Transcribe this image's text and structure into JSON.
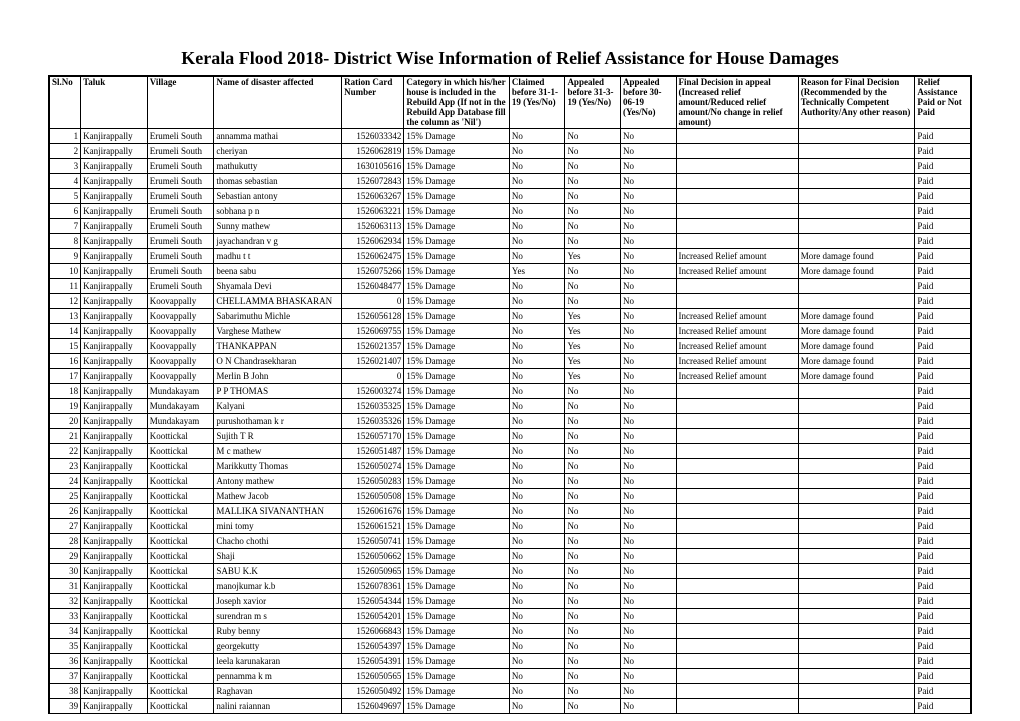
{
  "title": "Kerala Flood 2018- District Wise Information of Relief Assistance for House Damages",
  "columns": [
    "Sl.No",
    "Taluk",
    "Village",
    "Name of disaster affected",
    "Ration Card Number",
    "Category in which his/her house is included in the Rebuild App (If not in the Rebuild App Database fill the column as 'Nil')",
    "Claimed before 31-1-19 (Yes/No)",
    "Appealed before 31-3-19 (Yes/No)",
    "Appealed before 30-06-19 (Yes/No)",
    "Final Decision in appeal (Increased relief amount/Reduced relief amount/No change in relief amount)",
    "Reason for Final Decision (Recommended by the Technically Competent Authority/Any other reason)",
    "Relief Assistance Paid or Not Paid"
  ],
  "rows": [
    {
      "sl": 1,
      "taluk": "Kanjirappally",
      "village": "Erumeli South",
      "name": "annamma mathai",
      "ration": "1526033342",
      "cat": "15% Damage",
      "a1": "No",
      "a2": "No",
      "a3": "No",
      "final": "",
      "reason": "",
      "paid": "Paid"
    },
    {
      "sl": 2,
      "taluk": "Kanjirappally",
      "village": "Erumeli South",
      "name": "cheriyan",
      "ration": "1526062819",
      "cat": "15% Damage",
      "a1": "No",
      "a2": "No",
      "a3": "No",
      "final": "",
      "reason": "",
      "paid": "Paid"
    },
    {
      "sl": 3,
      "taluk": "Kanjirappally",
      "village": "Erumeli South",
      "name": "mathukutty",
      "ration": "1630105616",
      "cat": "15% Damage",
      "a1": "No",
      "a2": "No",
      "a3": "No",
      "final": "",
      "reason": "",
      "paid": "Paid"
    },
    {
      "sl": 4,
      "taluk": "Kanjirappally",
      "village": "Erumeli South",
      "name": "thomas sebastian",
      "ration": "1526072843",
      "cat": "15% Damage",
      "a1": "No",
      "a2": "No",
      "a3": "No",
      "final": "",
      "reason": "",
      "paid": "Paid"
    },
    {
      "sl": 5,
      "taluk": "Kanjirappally",
      "village": "Erumeli South",
      "name": "Sebastian antony",
      "ration": "1526063267",
      "cat": "15% Damage",
      "a1": "No",
      "a2": "No",
      "a3": "No",
      "final": "",
      "reason": "",
      "paid": "Paid"
    },
    {
      "sl": 6,
      "taluk": "Kanjirappally",
      "village": "Erumeli South",
      "name": "sobhana p n",
      "ration": "1526063221",
      "cat": "15% Damage",
      "a1": "No",
      "a2": "No",
      "a3": "No",
      "final": "",
      "reason": "",
      "paid": "Paid"
    },
    {
      "sl": 7,
      "taluk": "Kanjirappally",
      "village": "Erumeli South",
      "name": "Sunny mathew",
      "ration": "1526063113",
      "cat": "15% Damage",
      "a1": "No",
      "a2": "No",
      "a3": "No",
      "final": "",
      "reason": "",
      "paid": "Paid"
    },
    {
      "sl": 8,
      "taluk": "Kanjirappally",
      "village": "Erumeli South",
      "name": "jayachandran v g",
      "ration": "1526062934",
      "cat": "15% Damage",
      "a1": "No",
      "a2": "No",
      "a3": "No",
      "final": "",
      "reason": "",
      "paid": "Paid"
    },
    {
      "sl": 9,
      "taluk": "Kanjirappally",
      "village": "Erumeli South",
      "name": "madhu t t",
      "ration": "1526062475",
      "cat": "15% Damage",
      "a1": "No",
      "a2": "Yes",
      "a3": "No",
      "final": "Increased Relief amount",
      "reason": "More damage found",
      "paid": "Paid"
    },
    {
      "sl": 10,
      "taluk": "Kanjirappally",
      "village": "Erumeli South",
      "name": "beena sabu",
      "ration": "1526075266",
      "cat": "15% Damage",
      "a1": "Yes",
      "a2": "No",
      "a3": "No",
      "final": "Increased Relief amount",
      "reason": "More damage found",
      "paid": "Paid"
    },
    {
      "sl": 11,
      "taluk": "Kanjirappally",
      "village": "Erumeli South",
      "name": "Shyamala Devi",
      "ration": "1526048477",
      "cat": "15% Damage",
      "a1": "No",
      "a2": "No",
      "a3": "No",
      "final": "",
      "reason": "",
      "paid": "Paid"
    },
    {
      "sl": 12,
      "taluk": "Kanjirappally",
      "village": "Koovappally",
      "name": "CHELLAMMA BHASKARAN",
      "ration": "0",
      "cat": "15% Damage",
      "a1": "No",
      "a2": "No",
      "a3": "No",
      "final": "",
      "reason": "",
      "paid": "Paid"
    },
    {
      "sl": 13,
      "taluk": "Kanjirappally",
      "village": "Koovappally",
      "name": "Sabarimuthu Michle",
      "ration": "1526056128",
      "cat": "15% Damage",
      "a1": "No",
      "a2": "Yes",
      "a3": "No",
      "final": "Increased Relief amount",
      "reason": "More damage found",
      "paid": "Paid"
    },
    {
      "sl": 14,
      "taluk": "Kanjirappally",
      "village": "Koovappally",
      "name": "Varghese Mathew",
      "ration": "1526069755",
      "cat": "15% Damage",
      "a1": "No",
      "a2": "Yes",
      "a3": "No",
      "final": "Increased Relief amount",
      "reason": "More damage found",
      "paid": "Paid"
    },
    {
      "sl": 15,
      "taluk": "Kanjirappally",
      "village": "Koovappally",
      "name": "THANKAPPAN",
      "ration": "1526021357",
      "cat": "15% Damage",
      "a1": "No",
      "a2": "Yes",
      "a3": "No",
      "final": "Increased Relief amount",
      "reason": "More damage found",
      "paid": "Paid"
    },
    {
      "sl": 16,
      "taluk": "Kanjirappally",
      "village": "Koovappally",
      "name": "O N Chandrasekharan",
      "ration": "1526021407",
      "cat": "15% Damage",
      "a1": "No",
      "a2": "Yes",
      "a3": "No",
      "final": "Increased Relief amount",
      "reason": "More damage found",
      "paid": "Paid"
    },
    {
      "sl": 17,
      "taluk": "Kanjirappally",
      "village": "Koovappally",
      "name": "Merlin B John",
      "ration": "0",
      "cat": "15% Damage",
      "a1": "No",
      "a2": "Yes",
      "a3": "No",
      "final": "Increased Relief amount",
      "reason": "More damage found",
      "paid": "Paid"
    },
    {
      "sl": 18,
      "taluk": "Kanjirappally",
      "village": "Mundakayam",
      "name": "P P THOMAS",
      "ration": "1526003274",
      "cat": "15% Damage",
      "a1": "No",
      "a2": "No",
      "a3": "No",
      "final": "",
      "reason": "",
      "paid": "Paid"
    },
    {
      "sl": 19,
      "taluk": "Kanjirappally",
      "village": "Mundakayam",
      "name": "Kalyani",
      "ration": "1526035325",
      "cat": "15% Damage",
      "a1": "No",
      "a2": "No",
      "a3": "No",
      "final": "",
      "reason": "",
      "paid": "Paid"
    },
    {
      "sl": 20,
      "taluk": "Kanjirappally",
      "village": "Mundakayam",
      "name": "purushothaman k r",
      "ration": "1526035326",
      "cat": "15% Damage",
      "a1": "No",
      "a2": "No",
      "a3": "No",
      "final": "",
      "reason": "",
      "paid": "Paid"
    },
    {
      "sl": 21,
      "taluk": "Kanjirappally",
      "village": "Koottickal",
      "name": "Sujith T R",
      "ration": "1526057170",
      "cat": "15% Damage",
      "a1": "No",
      "a2": "No",
      "a3": "No",
      "final": "",
      "reason": "",
      "paid": "Paid"
    },
    {
      "sl": 22,
      "taluk": "Kanjirappally",
      "village": "Koottickal",
      "name": "M c mathew",
      "ration": "1526051487",
      "cat": "15% Damage",
      "a1": "No",
      "a2": "No",
      "a3": "No",
      "final": "",
      "reason": "",
      "paid": "Paid"
    },
    {
      "sl": 23,
      "taluk": "Kanjirappally",
      "village": "Koottickal",
      "name": "Marikkutty Thomas",
      "ration": "1526050274",
      "cat": "15% Damage",
      "a1": "No",
      "a2": "No",
      "a3": "No",
      "final": "",
      "reason": "",
      "paid": "Paid"
    },
    {
      "sl": 24,
      "taluk": "Kanjirappally",
      "village": "Koottickal",
      "name": "Antony mathew",
      "ration": "1526050283",
      "cat": "15% Damage",
      "a1": "No",
      "a2": "No",
      "a3": "No",
      "final": "",
      "reason": "",
      "paid": "Paid"
    },
    {
      "sl": 25,
      "taluk": "Kanjirappally",
      "village": "Koottickal",
      "name": "Mathew Jacob",
      "ration": "1526050508",
      "cat": "15% Damage",
      "a1": "No",
      "a2": "No",
      "a3": "No",
      "final": "",
      "reason": "",
      "paid": "Paid"
    },
    {
      "sl": 26,
      "taluk": "Kanjirappally",
      "village": "Koottickal",
      "name": "MALLIKA SIVANANTHAN",
      "ration": "1526061676",
      "cat": "15% Damage",
      "a1": "No",
      "a2": "No",
      "a3": "No",
      "final": "",
      "reason": "",
      "paid": "Paid"
    },
    {
      "sl": 27,
      "taluk": "Kanjirappally",
      "village": "Koottickal",
      "name": "mini tomy",
      "ration": "1526061521",
      "cat": "15% Damage",
      "a1": "No",
      "a2": "No",
      "a3": "No",
      "final": "",
      "reason": "",
      "paid": "Paid"
    },
    {
      "sl": 28,
      "taluk": "Kanjirappally",
      "village": "Koottickal",
      "name": "Chacho chothi",
      "ration": "1526050741",
      "cat": "15% Damage",
      "a1": "No",
      "a2": "No",
      "a3": "No",
      "final": "",
      "reason": "",
      "paid": "Paid"
    },
    {
      "sl": 29,
      "taluk": "Kanjirappally",
      "village": "Koottickal",
      "name": "Shaji",
      "ration": "1526050662",
      "cat": "15% Damage",
      "a1": "No",
      "a2": "No",
      "a3": "No",
      "final": "",
      "reason": "",
      "paid": "Paid"
    },
    {
      "sl": 30,
      "taluk": "Kanjirappally",
      "village": "Koottickal",
      "name": "SABU K.K",
      "ration": "1526050965",
      "cat": "15% Damage",
      "a1": "No",
      "a2": "No",
      "a3": "No",
      "final": "",
      "reason": "",
      "paid": "Paid"
    },
    {
      "sl": 31,
      "taluk": "Kanjirappally",
      "village": "Koottickal",
      "name": "manojkumar k.b",
      "ration": "1526078361",
      "cat": "15% Damage",
      "a1": "No",
      "a2": "No",
      "a3": "No",
      "final": "",
      "reason": "",
      "paid": "Paid"
    },
    {
      "sl": 32,
      "taluk": "Kanjirappally",
      "village": "Koottickal",
      "name": "Joseph xavior",
      "ration": "1526054344",
      "cat": "15% Damage",
      "a1": "No",
      "a2": "No",
      "a3": "No",
      "final": "",
      "reason": "",
      "paid": "Paid"
    },
    {
      "sl": 33,
      "taluk": "Kanjirappally",
      "village": "Koottickal",
      "name": "surendran m s",
      "ration": "1526054201",
      "cat": "15% Damage",
      "a1": "No",
      "a2": "No",
      "a3": "No",
      "final": "",
      "reason": "",
      "paid": "Paid"
    },
    {
      "sl": 34,
      "taluk": "Kanjirappally",
      "village": "Koottickal",
      "name": "Ruby benny",
      "ration": "1526066843",
      "cat": "15% Damage",
      "a1": "No",
      "a2": "No",
      "a3": "No",
      "final": "",
      "reason": "",
      "paid": "Paid"
    },
    {
      "sl": 35,
      "taluk": "Kanjirappally",
      "village": "Koottickal",
      "name": "georgekutty",
      "ration": "1526054397",
      "cat": "15% Damage",
      "a1": "No",
      "a2": "No",
      "a3": "No",
      "final": "",
      "reason": "",
      "paid": "Paid"
    },
    {
      "sl": 36,
      "taluk": "Kanjirappally",
      "village": "Koottickal",
      "name": "leela karunakaran",
      "ration": "1526054391",
      "cat": "15% Damage",
      "a1": "No",
      "a2": "No",
      "a3": "No",
      "final": "",
      "reason": "",
      "paid": "Paid"
    },
    {
      "sl": 37,
      "taluk": "Kanjirappally",
      "village": "Koottickal",
      "name": "pennamma k m",
      "ration": "1526050565",
      "cat": "15% Damage",
      "a1": "No",
      "a2": "No",
      "a3": "No",
      "final": "",
      "reason": "",
      "paid": "Paid"
    },
    {
      "sl": 38,
      "taluk": "Kanjirappally",
      "village": "Koottickal",
      "name": "Raghavan",
      "ration": "1526050492",
      "cat": "15% Damage",
      "a1": "No",
      "a2": "No",
      "a3": "No",
      "final": "",
      "reason": "",
      "paid": "Paid"
    },
    {
      "sl": 39,
      "taluk": "Kanjirappally",
      "village": "Koottickal",
      "name": "nalini raiannan",
      "ration": "1526049697",
      "cat": "15% Damage",
      "a1": "No",
      "a2": "No",
      "a3": "No",
      "final": "",
      "reason": "",
      "paid": "Paid"
    }
  ]
}
